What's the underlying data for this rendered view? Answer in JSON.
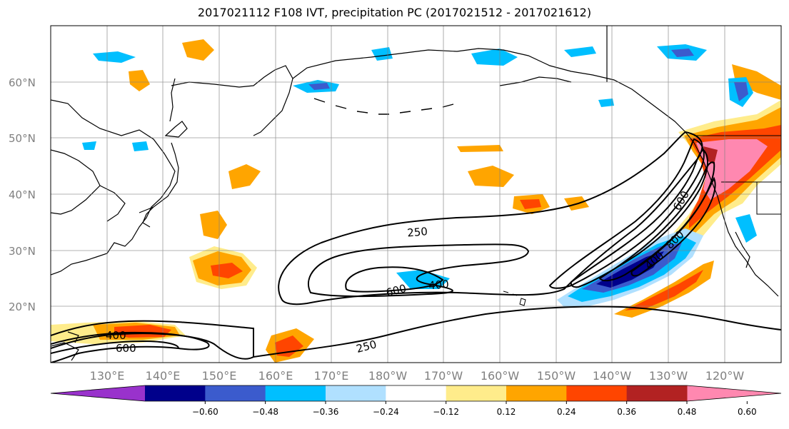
{
  "title": "2017021112 F108 IVT, precipitation PC (2017021512 - 2017021612)",
  "lat_labels": [
    "60°N",
    "50°N",
    "40°N",
    "30°N",
    "20°N"
  ],
  "lon_labels": [
    "130°E",
    "140°E",
    "150°E",
    "160°E",
    "170°E",
    "180°W",
    "170°W",
    "160°W",
    "150°W",
    "140°W",
    "130°W",
    "120°W"
  ],
  "contour_labels": {
    "c250a": "250",
    "c250b": "250",
    "c400a": "400",
    "c400b": "400",
    "c400c": "400",
    "c600a": "600",
    "c600b": "600",
    "c600c": "600",
    "c800": "800"
  },
  "colorbar": {
    "ticks": [
      "−0.60",
      "−0.48",
      "−0.36",
      "−0.24",
      "−0.12",
      "0.12",
      "0.24",
      "0.36",
      "0.48",
      "0.60"
    ],
    "colors": [
      "#9932cc",
      "#00008b",
      "#3b5bcd",
      "#00bfff",
      "#b0e0ff",
      "#ffffff",
      "#ffec8b",
      "#ffa500",
      "#ff4500",
      "#b22222",
      "#ff88b0"
    ]
  }
}
